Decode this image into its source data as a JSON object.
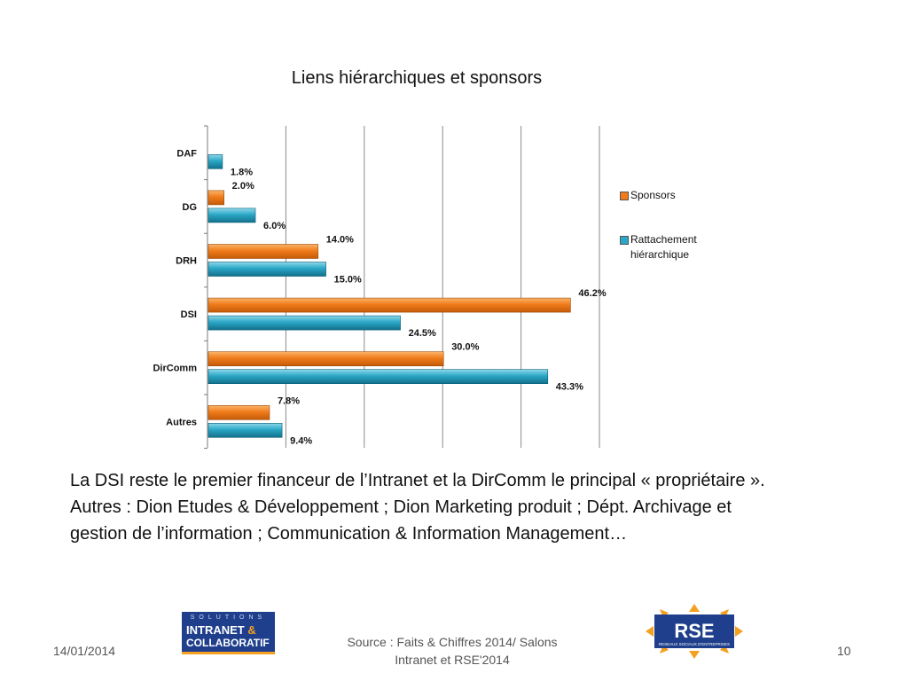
{
  "colors": {
    "sponsors": "#f07c1b",
    "rattachement": "#2aa7c6",
    "grid": "#8a8a8a"
  },
  "chart_data": {
    "type": "bar",
    "orientation": "horizontal",
    "title": "Liens hiérarchiques et sponsors",
    "categories": [
      "DAF",
      "DG",
      "DRH",
      "DSI",
      "DirComm",
      "Autres"
    ],
    "series": [
      {
        "name": "Sponsors",
        "values": [
          null,
          2.0,
          14.0,
          46.2,
          30.0,
          7.8
        ],
        "labels": [
          "",
          "2.0%",
          "14.0%",
          "46.2%",
          "30.0%",
          "7.8%"
        ]
      },
      {
        "name": "Rattachement hiérarchique",
        "values": [
          1.8,
          6.0,
          15.0,
          24.5,
          43.3,
          9.4
        ],
        "labels": [
          "1.8%",
          "6.0%",
          "15.0%",
          "24.5%",
          "43.3%",
          "9.4%"
        ]
      }
    ],
    "xlim": [
      0,
      50
    ],
    "grid": true,
    "legend_position": "right"
  },
  "body": {
    "line1": "La DSI reste le premier financeur de l’Intranet et la DirComm le principal « propriétaire ».",
    "line2": "Autres : Dion Etudes & Développement ; Dion Marketing produit ; Dépt. Archivage et gestion de l’information ; Communication & Information Management…"
  },
  "footer": {
    "date": "14/01/2014",
    "source": "Source : Faits & Chiffres 2014/ Salons Intranet et RSE'2014",
    "page": "10"
  },
  "logos": {
    "left_line1": "SOLUTIONS",
    "left_line2a": "INTRANET ",
    "left_amp": "&",
    "left_line3": "COLLABORATIF",
    "right_main": "RSE",
    "right_sub": "RESEAUX SOCIAUX D'ENTREPRISES"
  }
}
